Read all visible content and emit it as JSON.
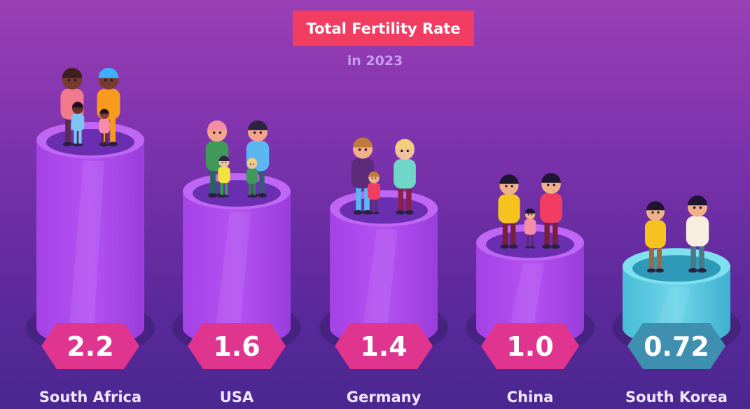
{
  "title": "Total Fertility Rate",
  "subtitle": "in 2023",
  "chart_data": {
    "type": "bar",
    "title": "Total Fertility Rate",
    "subtitle": "in 2023",
    "categories": [
      "South Africa",
      "USA",
      "Germany",
      "China",
      "South Korea"
    ],
    "values": [
      2.2,
      1.6,
      1.4,
      1.0,
      0.72
    ],
    "value_labels": [
      "2.2",
      "1.6",
      "1.4",
      "1.0",
      "0.72"
    ],
    "ylim": [
      0,
      2.2
    ],
    "grid": false,
    "colors": {
      "bar": "#b04df0",
      "bar_highlight": "#4fc6de",
      "badge": "#e0358f",
      "badge_highlight": "#3f8fb0"
    },
    "highlight": "South Korea"
  }
}
